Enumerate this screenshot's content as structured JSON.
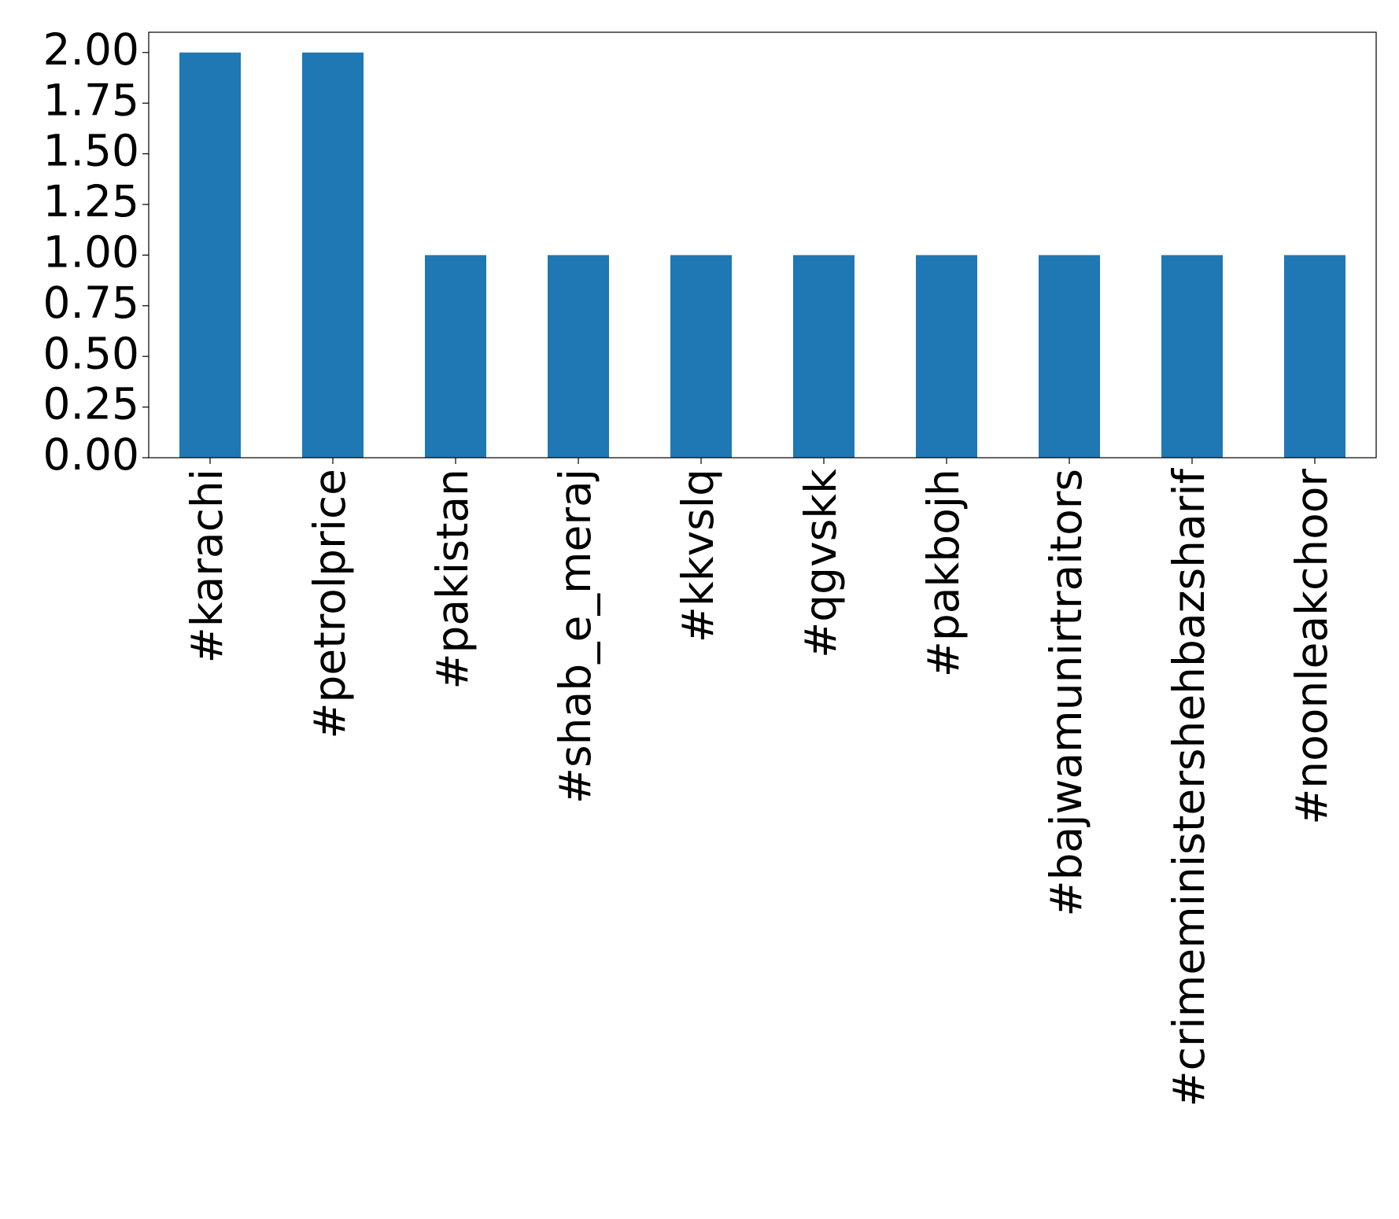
{
  "chart_data": {
    "type": "bar",
    "categories": [
      "#karachi",
      "#petrolprice",
      "#pakistan",
      "#shab_e_meraj",
      "#kkvslq",
      "#qgvskk",
      "#pakbojh",
      "#bajwamunirtraitors",
      "#crimeministershehbazsharif",
      "#noonleakchoor"
    ],
    "values": [
      2,
      2,
      1,
      1,
      1,
      1,
      1,
      1,
      1,
      1
    ],
    "color": "#1f77b4",
    "ylim": [
      0,
      2.1
    ],
    "yticks": [
      {
        "value": 0,
        "label": "0.00"
      },
      {
        "value": 0.25,
        "label": "0.25"
      },
      {
        "value": 0.5,
        "label": "0.50"
      },
      {
        "value": 0.75,
        "label": "0.75"
      },
      {
        "value": 1,
        "label": "1.00"
      },
      {
        "value": 1.25,
        "label": "1.25"
      },
      {
        "value": 1.5,
        "label": "1.50"
      },
      {
        "value": 1.75,
        "label": "1.75"
      },
      {
        "value": 2,
        "label": "2.00"
      }
    ],
    "grid": false
  }
}
